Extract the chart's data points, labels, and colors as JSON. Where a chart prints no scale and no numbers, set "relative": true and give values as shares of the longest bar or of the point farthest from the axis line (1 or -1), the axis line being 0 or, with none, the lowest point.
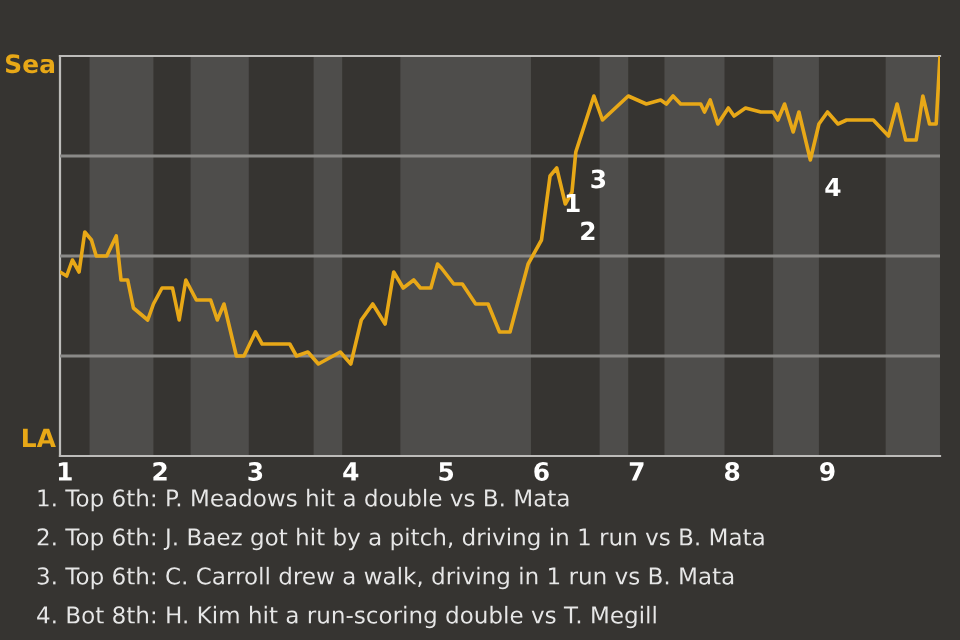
{
  "chart_data": {
    "type": "line",
    "relative": true,
    "x": [
      0.95,
      1.02,
      1.08,
      1.15,
      1.21,
      1.28,
      1.33,
      1.44,
      1.54,
      1.59,
      1.66,
      1.72,
      1.87,
      1.93,
      2.02,
      2.13,
      2.2,
      2.27,
      2.38,
      2.53,
      2.6,
      2.67,
      2.8,
      2.88,
      3.0,
      3.07,
      3.36,
      3.43,
      3.55,
      3.66,
      3.89,
      4.0,
      4.11,
      4.23,
      4.36,
      4.45,
      4.55,
      4.66,
      4.73,
      4.84,
      4.91,
      4.95,
      5.08,
      5.17,
      5.31,
      5.44,
      5.56,
      5.67,
      5.86,
      6.0,
      6.09,
      6.16,
      6.25,
      6.32,
      6.36,
      6.55,
      6.64,
      6.91,
      7.1,
      7.25,
      7.31,
      7.38,
      7.46,
      7.67,
      7.71,
      7.77,
      7.85,
      7.96,
      8.02,
      8.14,
      8.3,
      8.43,
      8.48,
      8.55,
      8.64,
      8.7,
      8.82,
      8.91,
      9.0,
      9.11,
      9.2,
      9.48,
      9.64,
      9.73,
      9.82,
      9.93,
      10.0,
      10.07,
      10.14,
      10.18
    ],
    "series": [
      {
        "color": "#e8a817",
        "values": [
          0.46,
          0.45,
          0.49,
          0.46,
          0.56,
          0.54,
          0.5,
          0.5,
          0.55,
          0.44,
          0.44,
          0.37,
          0.34,
          0.38,
          0.42,
          0.42,
          0.34,
          0.44,
          0.39,
          0.39,
          0.34,
          0.38,
          0.25,
          0.25,
          0.31,
          0.28,
          0.28,
          0.25,
          0.26,
          0.23,
          0.26,
          0.23,
          0.34,
          0.38,
          0.33,
          0.46,
          0.42,
          0.44,
          0.42,
          0.42,
          0.48,
          0.47,
          0.43,
          0.43,
          0.38,
          0.38,
          0.31,
          0.31,
          0.48,
          0.54,
          0.7,
          0.72,
          0.63,
          0.66,
          0.76,
          0.9,
          0.84,
          0.9,
          0.88,
          0.89,
          0.88,
          0.9,
          0.88,
          0.88,
          0.86,
          0.89,
          0.83,
          0.87,
          0.85,
          0.87,
          0.86,
          0.86,
          0.84,
          0.88,
          0.81,
          0.86,
          0.74,
          0.83,
          0.86,
          0.83,
          0.84,
          0.84,
          0.8,
          0.88,
          0.79,
          0.79,
          0.9,
          0.83,
          0.83,
          1.0
        ]
      }
    ],
    "xlim": [
      0.95,
      10.18
    ],
    "xticks": [
      1,
      2,
      3,
      4,
      5,
      6,
      7,
      8,
      9
    ],
    "grid": "y",
    "bands": [
      {
        "axis": "x",
        "from": 1.26,
        "to": 1.93,
        "color": "#4e4d4b"
      },
      {
        "axis": "x",
        "from": 2.32,
        "to": 2.93,
        "color": "#4e4d4b"
      },
      {
        "axis": "x",
        "from": 3.61,
        "to": 3.91,
        "color": "#4e4d4b"
      },
      {
        "axis": "x",
        "from": 4.52,
        "to": 5.89,
        "color": "#4e4d4b"
      },
      {
        "axis": "x",
        "from": 6.61,
        "to": 6.91,
        "color": "#4e4d4b"
      },
      {
        "axis": "x",
        "from": 7.29,
        "to": 7.92,
        "color": "#4e4d4b"
      },
      {
        "axis": "x",
        "from": 8.43,
        "to": 8.91,
        "color": "#4e4d4b"
      },
      {
        "axis": "x",
        "from": 9.61,
        "to": 10.18,
        "color": "#4e4d4b"
      }
    ],
    "annotations": [
      "Sea",
      "LA",
      {
        "text": "1",
        "x": 6.09,
        "y": 0.7
      },
      {
        "text": "2",
        "x": 6.25,
        "y": 0.63
      },
      {
        "text": "3",
        "x": 6.36,
        "y": 0.76
      },
      {
        "text": "4",
        "x": 8.82,
        "y": 0.74
      },
      "1. Top 6th: P. Meadows hit a double vs B. Mata",
      "2. Top 6th: J. Baez got hit by a pitch, driving in 1 run vs B. Mata",
      "3. Top 6th: C. Carroll drew a walk, driving in 1 run vs B. Mata",
      "4. Bot 8th: H. Kim hit a run-scoring double vs T. Megill"
    ]
  }
}
